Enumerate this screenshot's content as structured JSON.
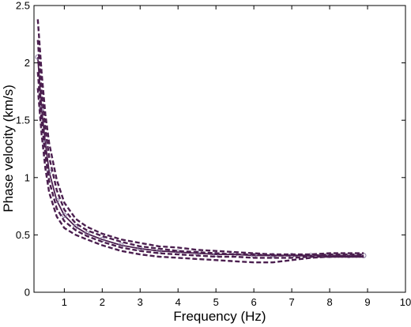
{
  "chart_data": {
    "type": "line",
    "title": "",
    "xlabel": "Frequency (Hz)",
    "ylabel": "Phase velocity (km/s)",
    "xlim": [
      0.2,
      10
    ],
    "ylim": [
      0,
      2.5
    ],
    "xticks": [
      "1",
      "2",
      "3",
      "4",
      "5",
      "6",
      "7",
      "8",
      "9",
      "10"
    ],
    "yticks": [
      "0",
      "0.5",
      "1",
      "1.5",
      "2",
      "2.5"
    ],
    "grid": false,
    "legend": "none",
    "color": "#4b1f4f",
    "series": [
      {
        "style": "solid",
        "markers": "circle",
        "x": [
          0.3,
          0.4,
          0.5,
          0.6,
          0.8,
          1.0,
          1.3,
          1.6,
          2.0,
          2.5,
          3.0,
          3.5,
          4.0,
          4.5,
          5.0,
          5.5,
          6.0,
          6.5,
          7.0,
          7.5,
          8.0,
          8.5,
          8.9
        ],
        "y": [
          2.05,
          1.6,
          1.3,
          1.05,
          0.8,
          0.67,
          0.57,
          0.51,
          0.46,
          0.41,
          0.38,
          0.36,
          0.35,
          0.34,
          0.33,
          0.33,
          0.32,
          0.32,
          0.32,
          0.32,
          0.32,
          0.32,
          0.32
        ]
      },
      {
        "style": "dashed",
        "markers": "none",
        "x": [
          0.3,
          0.4,
          0.5,
          0.6,
          0.8,
          1.0,
          1.3,
          1.6,
          2.0,
          2.5,
          3.0,
          3.5,
          4.0,
          4.5,
          5.0,
          5.5,
          6.0,
          6.5,
          7.0,
          7.5,
          8.0,
          8.5,
          8.9
        ],
        "y": [
          2.38,
          1.92,
          1.55,
          1.3,
          0.98,
          0.78,
          0.64,
          0.57,
          0.51,
          0.46,
          0.43,
          0.4,
          0.39,
          0.37,
          0.36,
          0.35,
          0.34,
          0.33,
          0.33,
          0.33,
          0.34,
          0.34,
          0.34
        ]
      },
      {
        "style": "dashed",
        "markers": "none",
        "x": [
          0.3,
          0.4,
          0.5,
          0.6,
          0.8,
          1.0,
          1.3,
          1.6,
          2.0,
          2.5,
          3.0,
          3.5,
          4.0,
          4.5,
          5.0,
          5.5,
          6.0,
          6.5,
          7.0,
          7.5,
          8.0,
          8.5,
          8.9
        ],
        "y": [
          2.2,
          1.75,
          1.42,
          1.18,
          0.89,
          0.72,
          0.6,
          0.54,
          0.49,
          0.44,
          0.4,
          0.38,
          0.36,
          0.35,
          0.34,
          0.33,
          0.33,
          0.32,
          0.32,
          0.32,
          0.33,
          0.33,
          0.33
        ]
      },
      {
        "style": "dashed",
        "markers": "none",
        "x": [
          0.3,
          0.4,
          0.5,
          0.6,
          0.8,
          1.0,
          1.3,
          1.6,
          2.0,
          2.5,
          3.0,
          3.5,
          4.0,
          4.5,
          5.0,
          5.5,
          6.0,
          6.5,
          7.0,
          7.5,
          8.0,
          8.5,
          8.9
        ],
        "y": [
          1.92,
          1.5,
          1.2,
          0.97,
          0.73,
          0.62,
          0.54,
          0.49,
          0.44,
          0.39,
          0.36,
          0.34,
          0.33,
          0.32,
          0.31,
          0.31,
          0.3,
          0.3,
          0.3,
          0.31,
          0.31,
          0.31,
          0.31
        ]
      },
      {
        "style": "dashed",
        "markers": "none",
        "x": [
          0.3,
          0.4,
          0.5,
          0.6,
          0.8,
          1.0,
          1.3,
          1.6,
          2.0,
          2.5,
          3.0,
          3.5,
          4.0,
          4.5,
          5.0,
          5.5,
          6.0,
          6.5,
          7.0,
          7.5,
          8.0,
          8.5,
          8.9
        ],
        "y": [
          1.78,
          1.38,
          1.08,
          0.87,
          0.66,
          0.56,
          0.5,
          0.46,
          0.41,
          0.36,
          0.33,
          0.31,
          0.3,
          0.29,
          0.28,
          0.27,
          0.26,
          0.26,
          0.28,
          0.3,
          0.31,
          0.31,
          0.31
        ]
      }
    ]
  }
}
